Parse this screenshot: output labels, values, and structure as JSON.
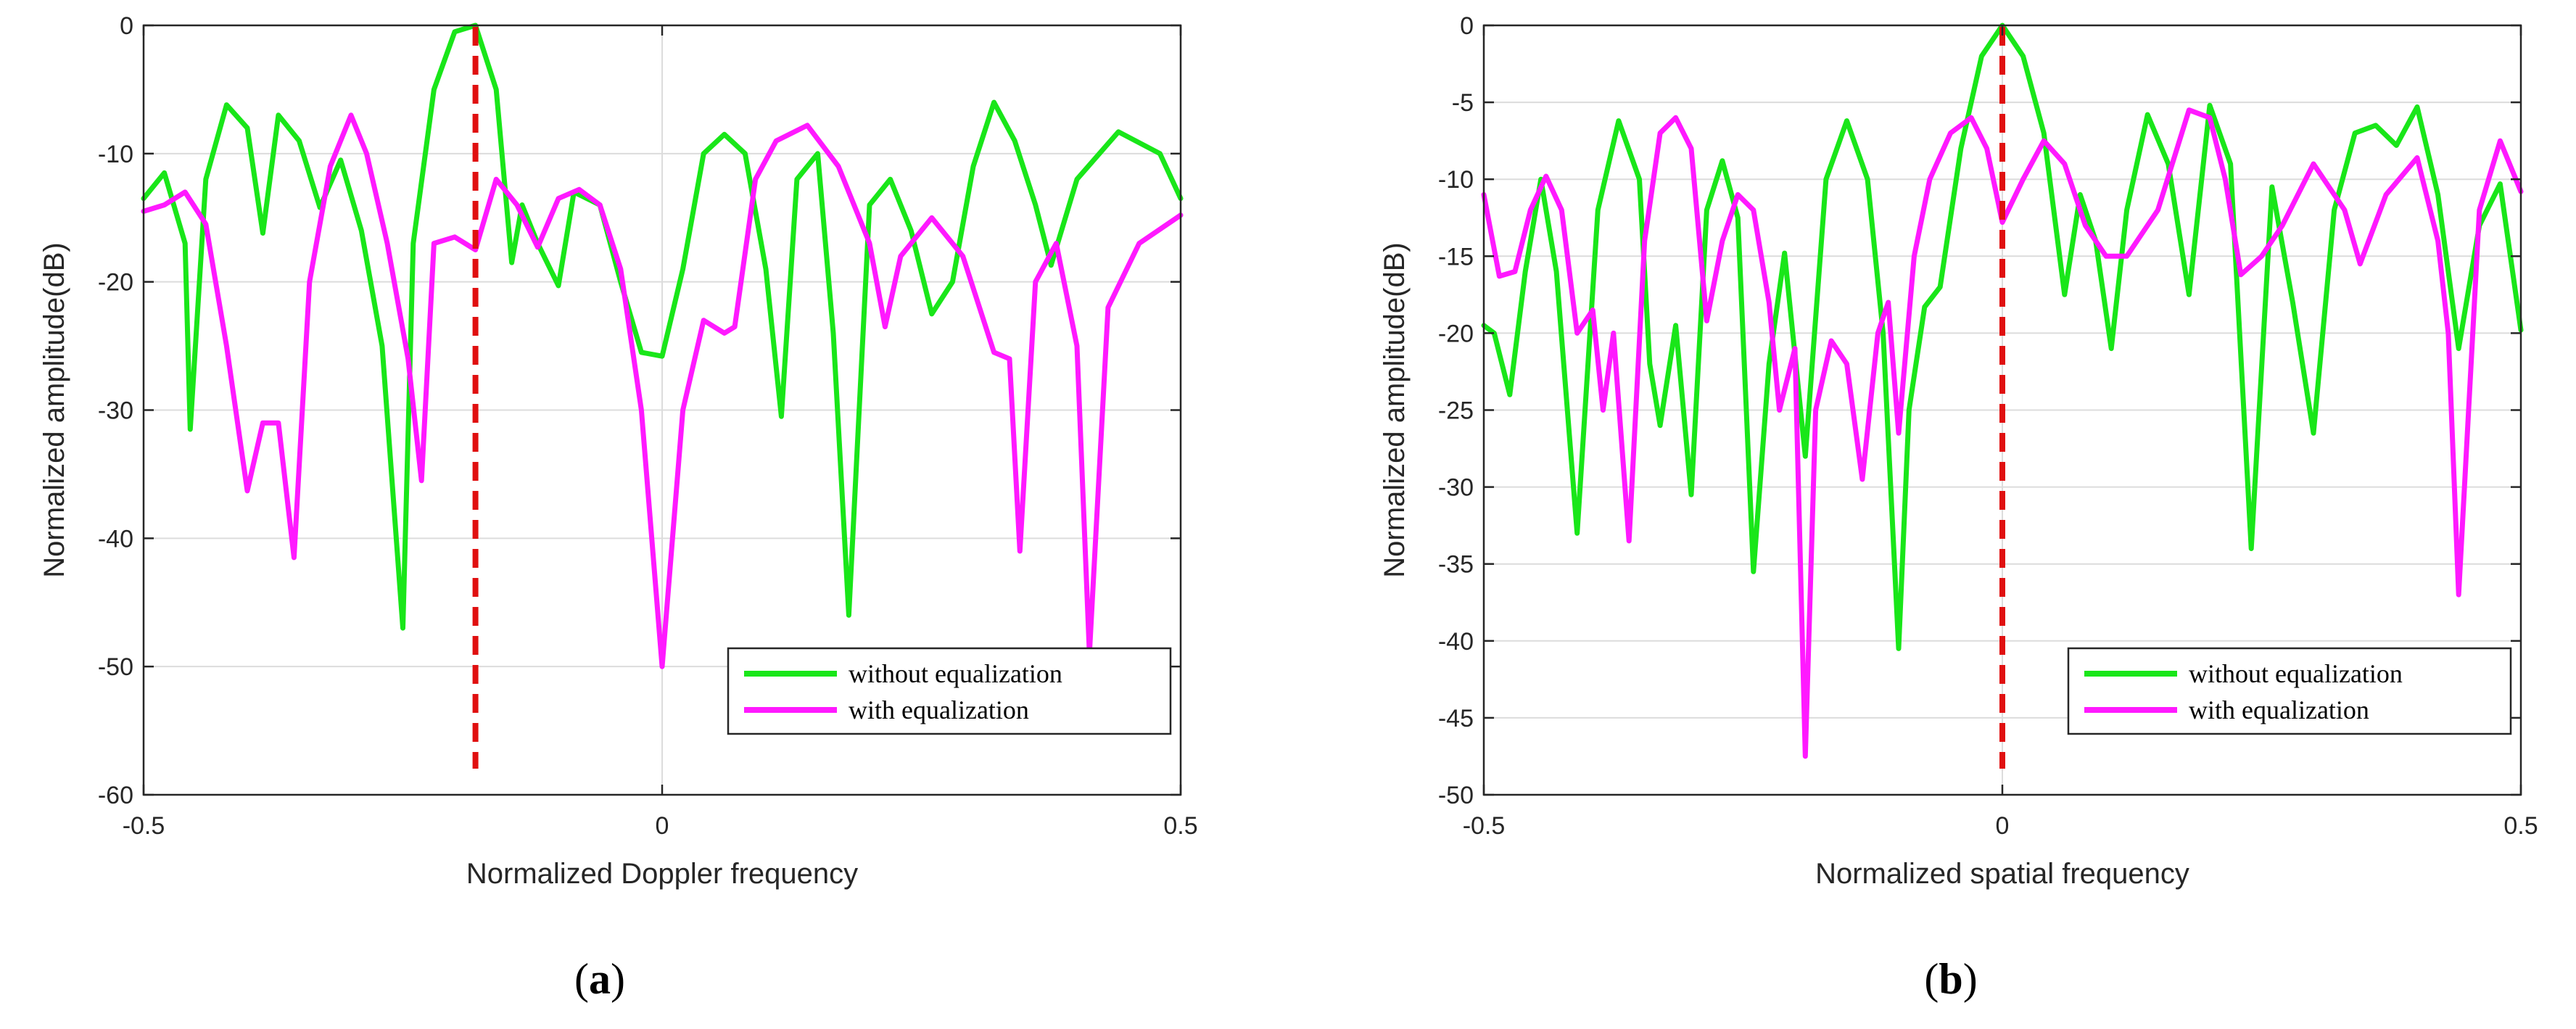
{
  "chart_data": [
    {
      "type": "line",
      "panel": "a",
      "caption": {
        "open": "(",
        "letter": "a",
        "close": ")"
      },
      "xlabel": "Normalized Doppler frequency",
      "ylabel": "Normalized amplitude(dB)",
      "xlim": [
        -0.5,
        0.5
      ],
      "ylim": [
        -60,
        0
      ],
      "xticks": [
        -0.5,
        0,
        0.5
      ],
      "xtick_labels": [
        "-0.5",
        "0",
        "0.5"
      ],
      "yticks": [
        0,
        -10,
        -20,
        -30,
        -40,
        -50,
        -60
      ],
      "ytick_labels": [
        "0",
        "-10",
        "-20",
        "-30",
        "-40",
        "-50",
        "-60"
      ],
      "grid": true,
      "legend_position": "bottom-right",
      "marker_line": {
        "x": -0.18,
        "color": "#e01010",
        "style": "dashed"
      },
      "series": [
        {
          "name": "without equalization",
          "color": "#19e619",
          "x": [
            -0.5,
            -0.48,
            -0.46,
            -0.455,
            -0.44,
            -0.42,
            -0.4,
            -0.385,
            -0.37,
            -0.35,
            -0.33,
            -0.31,
            -0.29,
            -0.27,
            -0.25,
            -0.24,
            -0.22,
            -0.2,
            -0.18,
            -0.16,
            -0.145,
            -0.135,
            -0.12,
            -0.1,
            -0.085,
            -0.06,
            -0.04,
            -0.02,
            0.0,
            0.02,
            0.04,
            0.06,
            0.08,
            0.1,
            0.115,
            0.13,
            0.15,
            0.165,
            0.18,
            0.2,
            0.22,
            0.24,
            0.26,
            0.28,
            0.3,
            0.32,
            0.34,
            0.36,
            0.375,
            0.4,
            0.44,
            0.48,
            0.5
          ],
          "values": [
            -13.5,
            -11.5,
            -17,
            -31.5,
            -12,
            -6.2,
            -8,
            -16.2,
            -7,
            -9,
            -14.2,
            -10.5,
            -16,
            -25,
            -47,
            -17,
            -5,
            -0.5,
            0,
            -5,
            -18.5,
            -14,
            -17,
            -20.3,
            -13,
            -14,
            -20,
            -25.5,
            -25.8,
            -19,
            -10,
            -8.5,
            -10,
            -19,
            -30.5,
            -12,
            -10,
            -24,
            -46,
            -14,
            -12,
            -16,
            -22.5,
            -20,
            -11,
            -6,
            -9,
            -14,
            -18.7,
            -12,
            -8.3,
            -10,
            -13.5
          ]
        },
        {
          "name": "with equalization",
          "color": "#ff19ff",
          "x": [
            -0.5,
            -0.48,
            -0.46,
            -0.44,
            -0.42,
            -0.4,
            -0.385,
            -0.37,
            -0.355,
            -0.34,
            -0.32,
            -0.3,
            -0.285,
            -0.265,
            -0.245,
            -0.232,
            -0.22,
            -0.2,
            -0.18,
            -0.16,
            -0.14,
            -0.12,
            -0.1,
            -0.08,
            -0.06,
            -0.04,
            -0.02,
            0.0,
            0.02,
            0.04,
            0.06,
            0.07,
            0.09,
            0.11,
            0.14,
            0.17,
            0.2,
            0.215,
            0.23,
            0.26,
            0.29,
            0.32,
            0.335,
            0.345,
            0.36,
            0.38,
            0.4,
            0.412,
            0.43,
            0.46,
            0.5
          ],
          "values": [
            -14.5,
            -14,
            -13,
            -15.5,
            -25,
            -36.3,
            -31,
            -31,
            -41.5,
            -20,
            -11,
            -7,
            -10,
            -17,
            -26,
            -35.5,
            -17,
            -16.5,
            -17.5,
            -12,
            -14,
            -17.3,
            -13.5,
            -12.8,
            -14,
            -19,
            -30,
            -50,
            -30,
            -23,
            -24,
            -23.5,
            -12,
            -9,
            -7.8,
            -11,
            -17,
            -23.5,
            -18,
            -15,
            -18,
            -25.5,
            -26,
            -41,
            -20,
            -17,
            -25,
            -49,
            -22,
            -17,
            -14.8
          ]
        }
      ]
    },
    {
      "type": "line",
      "panel": "b",
      "caption": {
        "open": "(",
        "letter": "b",
        "close": ")"
      },
      "xlabel": "Normalized spatial frequency",
      "ylabel": "Normalized amplitude(dB)",
      "xlim": [
        -0.5,
        0.5
      ],
      "ylim": [
        -50,
        0
      ],
      "xticks": [
        -0.5,
        0,
        0.5
      ],
      "xtick_labels": [
        "-0.5",
        "0",
        "0.5"
      ],
      "yticks": [
        0,
        -5,
        -10,
        -15,
        -20,
        -25,
        -30,
        -35,
        -40,
        -45,
        -50
      ],
      "ytick_labels": [
        "0",
        "-5",
        "-10",
        "-15",
        "-20",
        "-25",
        "-30",
        "-35",
        "-40",
        "-45",
        "-50"
      ],
      "grid": true,
      "legend_position": "bottom-right",
      "marker_line": {
        "x": 0.0,
        "color": "#e01010",
        "style": "dashed"
      },
      "series": [
        {
          "name": "without equalization",
          "color": "#19e619",
          "x": [
            -0.5,
            -0.49,
            -0.475,
            -0.46,
            -0.445,
            -0.43,
            -0.41,
            -0.39,
            -0.37,
            -0.35,
            -0.34,
            -0.33,
            -0.315,
            -0.3,
            -0.285,
            -0.27,
            -0.255,
            -0.24,
            -0.225,
            -0.21,
            -0.19,
            -0.17,
            -0.15,
            -0.13,
            -0.115,
            -0.1,
            -0.09,
            -0.075,
            -0.06,
            -0.04,
            -0.02,
            0.0,
            0.02,
            0.04,
            0.06,
            0.075,
            0.09,
            0.105,
            0.12,
            0.14,
            0.16,
            0.18,
            0.2,
            0.22,
            0.24,
            0.26,
            0.28,
            0.3,
            0.32,
            0.34,
            0.36,
            0.38,
            0.4,
            0.42,
            0.44,
            0.46,
            0.48,
            0.5
          ],
          "values": [
            -19.5,
            -20,
            -24,
            -16,
            -10,
            -16,
            -33,
            -12,
            -6.2,
            -10,
            -22,
            -26,
            -19.5,
            -30.5,
            -12,
            -8.8,
            -12.5,
            -35.5,
            -22,
            -14.8,
            -28,
            -10,
            -6.2,
            -10,
            -20,
            -40.5,
            -25,
            -18.3,
            -17,
            -8,
            -2,
            0,
            -2,
            -7,
            -17.5,
            -11,
            -14,
            -21,
            -12,
            -5.8,
            -9,
            -17.5,
            -5.2,
            -9,
            -34,
            -10.5,
            -18,
            -26.5,
            -12,
            -7,
            -6.5,
            -7.8,
            -5.3,
            -11,
            -21,
            -13,
            -10.3,
            -19.8
          ]
        },
        {
          "name": "with equalization",
          "color": "#ff19ff",
          "x": [
            -0.5,
            -0.485,
            -0.47,
            -0.455,
            -0.44,
            -0.425,
            -0.41,
            -0.395,
            -0.385,
            -0.375,
            -0.36,
            -0.345,
            -0.33,
            -0.315,
            -0.3,
            -0.285,
            -0.27,
            -0.255,
            -0.24,
            -0.225,
            -0.215,
            -0.2,
            -0.19,
            -0.18,
            -0.165,
            -0.15,
            -0.135,
            -0.12,
            -0.11,
            -0.1,
            -0.085,
            -0.07,
            -0.05,
            -0.03,
            -0.015,
            0.0,
            0.02,
            0.04,
            0.06,
            0.08,
            0.1,
            0.12,
            0.15,
            0.18,
            0.2,
            0.215,
            0.23,
            0.25,
            0.27,
            0.3,
            0.33,
            0.345,
            0.37,
            0.4,
            0.42,
            0.43,
            0.44,
            0.46,
            0.48,
            0.5
          ],
          "values": [
            -11,
            -16.3,
            -16,
            -12,
            -9.8,
            -12,
            -20,
            -18.5,
            -25,
            -20,
            -33.5,
            -14,
            -7,
            -6,
            -8,
            -19.2,
            -14,
            -11,
            -12,
            -18,
            -25,
            -21,
            -47.5,
            -25,
            -20.5,
            -22,
            -29.5,
            -20,
            -18,
            -26.5,
            -15,
            -10,
            -7,
            -6,
            -8,
            -12.8,
            -10,
            -7.5,
            -9,
            -13,
            -15,
            -15,
            -12,
            -5.5,
            -6,
            -10,
            -16.2,
            -15,
            -13,
            -9,
            -12,
            -15.5,
            -11,
            -8.6,
            -14,
            -20,
            -37,
            -12,
            -7.5,
            -10.8
          ]
        }
      ]
    }
  ]
}
